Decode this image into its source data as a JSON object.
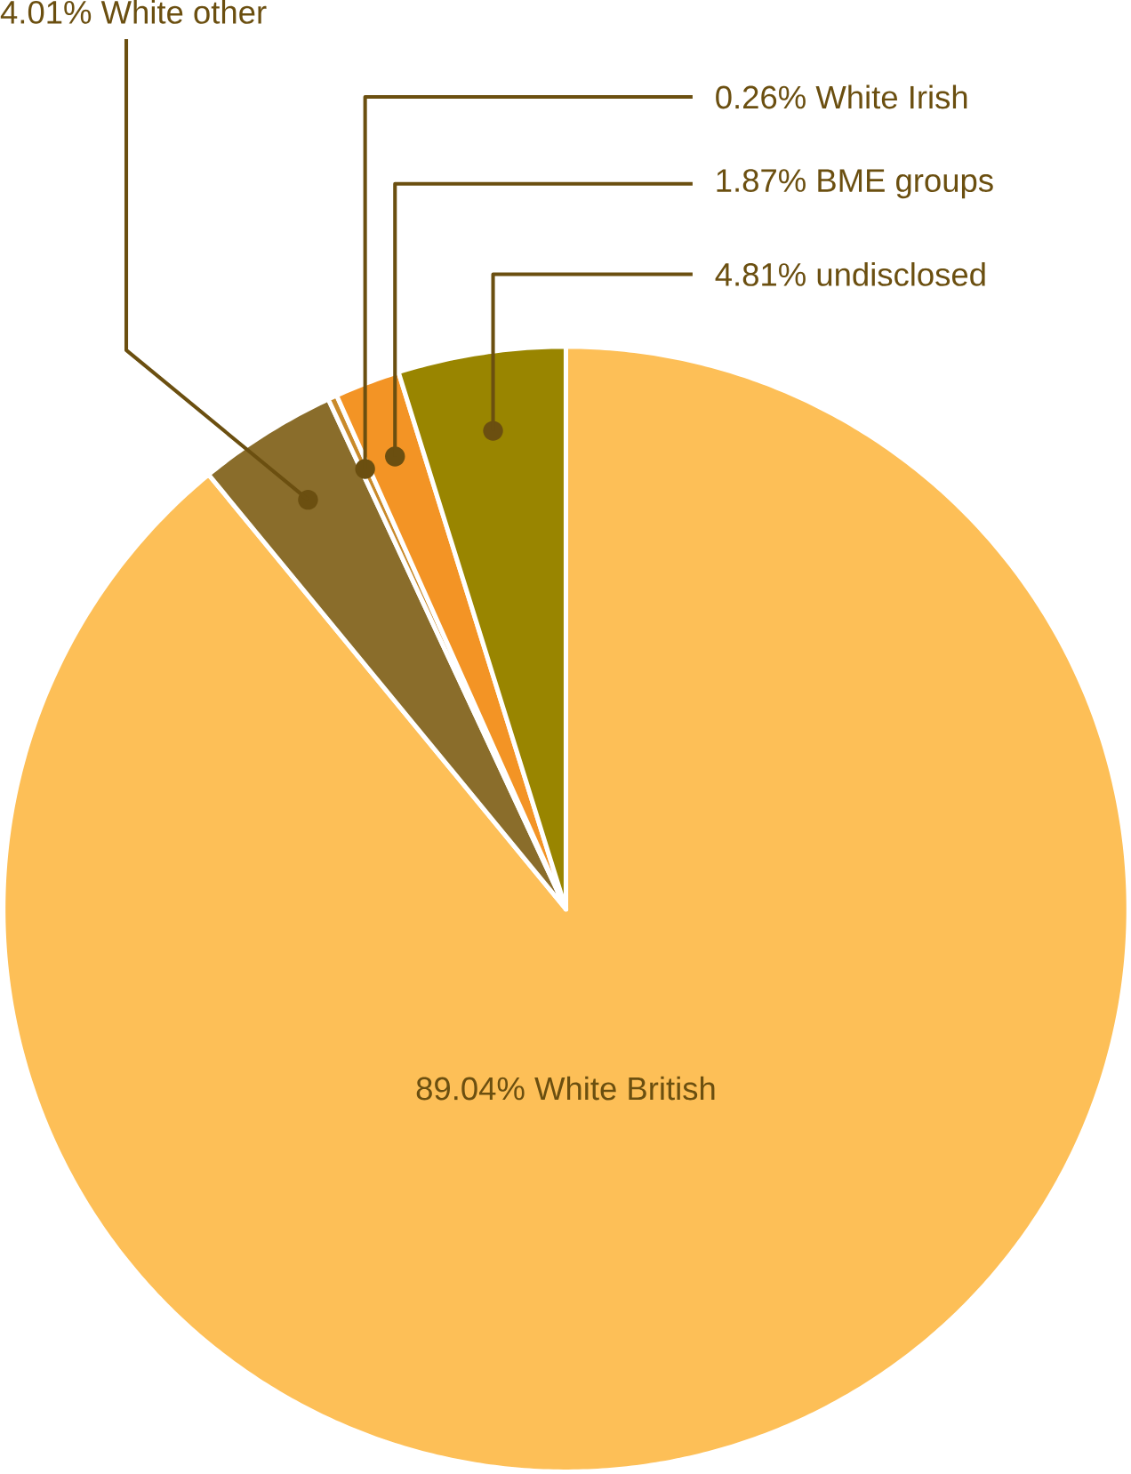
{
  "chart_data": {
    "type": "pie",
    "categories": [
      "White British",
      "White other",
      "White Irish",
      "BME groups",
      "undisclosed"
    ],
    "values": [
      89.04,
      4.01,
      0.26,
      1.87,
      4.81
    ],
    "colors": [
      "#fdbf57",
      "#8a6d2b",
      "#c98a2a",
      "#f39425",
      "#998500"
    ],
    "value_labels": [
      "89.04%",
      "4.01%",
      "0.26%",
      "1.87%",
      "4.81%"
    ]
  }
}
